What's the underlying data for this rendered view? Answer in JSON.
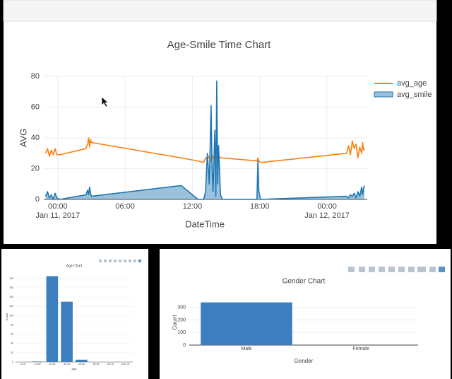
{
  "chart_data": [
    {
      "type": "line",
      "title": "Age-Smile Time Chart",
      "xlabel": "DateTime",
      "ylabel": "AVG",
      "x": [
        "2017-01-10 22:55",
        "2017-01-10 23:05",
        "2017-01-10 23:15",
        "2017-01-10 23:25",
        "2017-01-10 23:35",
        "2017-01-10 23:45",
        "2017-01-10 23:55",
        "2017-01-11 00:10",
        "2017-01-11 02:30",
        "2017-01-11 02:40",
        "2017-01-11 02:45",
        "2017-01-11 02:50",
        "2017-01-11 02:55",
        "2017-01-11 03:00",
        "2017-01-11 11:00",
        "2017-01-11 12:30",
        "2017-01-11 13:00",
        "2017-01-11 13:10",
        "2017-01-11 13:20",
        "2017-01-11 13:30",
        "2017-01-11 13:40",
        "2017-01-11 13:45",
        "2017-01-11 13:50",
        "2017-01-11 14:00",
        "2017-01-11 14:05",
        "2017-01-11 14:10",
        "2017-01-11 14:15",
        "2017-01-11 14:20",
        "2017-01-11 14:30",
        "2017-01-11 14:40",
        "2017-01-11 17:45",
        "2017-01-11 17:50",
        "2017-01-11 17:55",
        "2017-01-11 18:05",
        "2017-01-12 01:45",
        "2017-01-12 01:55",
        "2017-01-12 02:05",
        "2017-01-12 02:15",
        "2017-01-12 02:25",
        "2017-01-12 02:35",
        "2017-01-12 02:45",
        "2017-01-12 02:55",
        "2017-01-12 03:05",
        "2017-01-12 03:10",
        "2017-01-12 03:15",
        "2017-01-12 03:20"
      ],
      "series": [
        {
          "name": "avg_age",
          "color": "#ff7f0e",
          "fill": false,
          "values": [
            30,
            33,
            28,
            32,
            29,
            33,
            29,
            29,
            33,
            36,
            40,
            34,
            39,
            37,
            27,
            25,
            24,
            27,
            26,
            28,
            25,
            29,
            27,
            26,
            28,
            27,
            25,
            28,
            27,
            27,
            25,
            27,
            25,
            24,
            30,
            35,
            29,
            38,
            33,
            36,
            27,
            34,
            30,
            37,
            32,
            33
          ]
        },
        {
          "name": "avg_smile",
          "color": "#1f77b4",
          "fill": true,
          "values": [
            2,
            5,
            1,
            3,
            0,
            4,
            1,
            0,
            3,
            6,
            3,
            8,
            4,
            2,
            9,
            0,
            0,
            5,
            30,
            10,
            61,
            20,
            5,
            45,
            2,
            77,
            10,
            35,
            3,
            0,
            0,
            25,
            5,
            0,
            2,
            1,
            3,
            2,
            4,
            1,
            5,
            2,
            8,
            3,
            7,
            9
          ]
        }
      ],
      "xlim": [
        "2017-01-10 22:45",
        "2017-01-12 03:35"
      ],
      "xticks": [
        {
          "value": "2017-01-11 00:00",
          "label": "00:00\nJan 11, 2017"
        },
        {
          "value": "2017-01-11 06:00",
          "label": "06:00"
        },
        {
          "value": "2017-01-11 12:00",
          "label": "12:00"
        },
        {
          "value": "2017-01-11 18:00",
          "label": "18:00"
        },
        {
          "value": "2017-01-12 00:00",
          "label": "00:00\nJan 12, 2017"
        }
      ],
      "ylim": [
        0,
        80
      ],
      "yticks": [
        0,
        20,
        40,
        60,
        80
      ],
      "grid": true,
      "legend": "top-right"
    },
    {
      "type": "bar",
      "title": "Age Chart",
      "xlabel": "Age",
      "ylabel": "Count",
      "categories": [
        "0-10",
        "10-20",
        "20-30",
        "30-40",
        "40-50",
        "50-60",
        "60-70",
        "over 70"
      ],
      "values": [
        0,
        1,
        185,
        130,
        5,
        0,
        0,
        0
      ],
      "color": "#3d7ebf",
      "ylim": [
        0,
        195
      ],
      "yticks": [
        0,
        20,
        40,
        60,
        80,
        100,
        120,
        140,
        160,
        180
      ],
      "grid": true
    },
    {
      "type": "bar",
      "title": "Gender Chart",
      "xlabel": "Gender",
      "ylabel": "Count",
      "categories": [
        "Male",
        "Female"
      ],
      "values": [
        340,
        0
      ],
      "color": "#3d7ebf",
      "ylim": [
        0,
        355
      ],
      "yticks": [
        0,
        100,
        200,
        300
      ],
      "grid": true
    }
  ]
}
